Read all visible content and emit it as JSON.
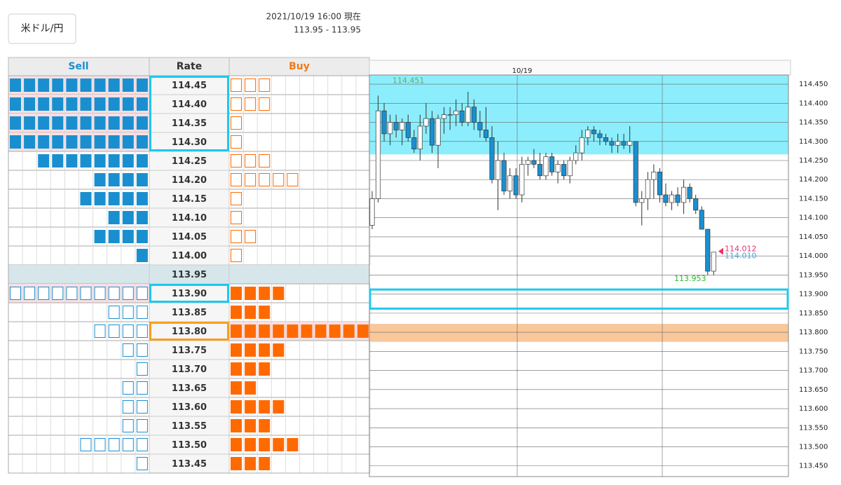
{
  "header": {
    "button": "米ドル/円",
    "timestamp": "2021/10/19 16:00 現在",
    "range": "113.95 - 113.95"
  },
  "order_book": {
    "columns": [
      "Sell",
      "Rate",
      "Buy"
    ],
    "rows": [
      {
        "rate": "114.45",
        "sell": 10,
        "buy": 3
      },
      {
        "rate": "114.40",
        "sell": 10,
        "buy": 3
      },
      {
        "rate": "114.35",
        "sell": 10,
        "buy": 1
      },
      {
        "rate": "114.30",
        "sell": 10,
        "buy": 1
      },
      {
        "rate": "114.25",
        "sell": 8,
        "buy": 3
      },
      {
        "rate": "114.20",
        "sell": 4,
        "buy": 5
      },
      {
        "rate": "114.15",
        "sell": 5,
        "buy": 1
      },
      {
        "rate": "114.10",
        "sell": 3,
        "buy": 1
      },
      {
        "rate": "114.05",
        "sell": 4,
        "buy": 2
      },
      {
        "rate": "114.00",
        "sell": 1,
        "buy": 1
      },
      {
        "rate": "113.95"
      },
      {
        "rate": "113.90",
        "sell": 10,
        "buy": 4
      },
      {
        "rate": "113.85",
        "sell": 3,
        "buy": 3
      },
      {
        "rate": "113.80",
        "sell": 4,
        "buy": 10
      },
      {
        "rate": "113.75",
        "sell": 2,
        "buy": 4
      },
      {
        "rate": "113.70",
        "sell": 1,
        "buy": 3
      },
      {
        "rate": "113.65",
        "sell": 2,
        "buy": 2
      },
      {
        "rate": "113.60",
        "sell": 2,
        "buy": 4
      },
      {
        "rate": "113.55",
        "sell": 2,
        "buy": 3
      },
      {
        "rate": "113.50",
        "sell": 5,
        "buy": 5
      },
      {
        "rate": "113.45",
        "sell": 1,
        "buy": 3
      }
    ]
  },
  "chart_data": {
    "type": "candlestick",
    "date_label": "10/19",
    "up_color": "#ffffff",
    "down_color": "#1a8fd0",
    "open": [
      114.08,
      114.15,
      114.38,
      114.32,
      114.35,
      114.33,
      114.35,
      114.31,
      114.28,
      114.34,
      114.36,
      114.29,
      114.36,
      114.37,
      114.37,
      114.38,
      114.35,
      114.39,
      114.35,
      114.33,
      114.31,
      114.2,
      114.25,
      114.17,
      114.21,
      114.16,
      114.24,
      114.25,
      114.24,
      114.21,
      114.26,
      114.22,
      114.24,
      114.21,
      114.25,
      114.27,
      114.31,
      114.33,
      114.32,
      114.31,
      114.3,
      114.29,
      114.3,
      114.29,
      114.3,
      114.14,
      114.15,
      114.2,
      114.22,
      114.16,
      114.14,
      114.16,
      114.14,
      114.18,
      114.15,
      114.12,
      114.07,
      113.96
    ],
    "high": [
      114.17,
      114.42,
      114.4,
      114.37,
      114.37,
      114.36,
      114.37,
      114.33,
      114.37,
      114.4,
      114.38,
      114.37,
      114.39,
      114.39,
      114.41,
      114.4,
      114.43,
      114.41,
      114.38,
      114.39,
      114.34,
      114.3,
      114.27,
      114.23,
      114.23,
      114.26,
      114.26,
      114.28,
      114.27,
      114.27,
      114.27,
      114.25,
      114.25,
      114.26,
      114.29,
      114.33,
      114.34,
      114.34,
      114.33,
      114.32,
      114.31,
      114.32,
      114.32,
      114.34,
      114.3,
      114.17,
      114.22,
      114.24,
      114.23,
      114.19,
      114.17,
      114.18,
      114.2,
      114.19,
      114.16,
      114.13,
      114.07,
      114.01
    ],
    "low": [
      114.07,
      114.14,
      114.3,
      114.29,
      114.31,
      114.29,
      114.3,
      114.27,
      114.25,
      114.32,
      114.27,
      114.23,
      114.32,
      114.33,
      114.34,
      114.34,
      114.34,
      114.33,
      114.31,
      114.3,
      114.19,
      114.12,
      114.16,
      114.15,
      114.15,
      114.14,
      114.21,
      114.23,
      114.2,
      114.2,
      114.21,
      114.19,
      114.2,
      114.19,
      114.24,
      114.25,
      114.29,
      114.3,
      114.29,
      114.29,
      114.27,
      114.27,
      114.28,
      114.27,
      114.13,
      114.08,
      114.12,
      114.15,
      114.14,
      114.13,
      114.12,
      114.13,
      114.11,
      114.14,
      114.11,
      114.07,
      113.95,
      113.95
    ],
    "close": [
      114.15,
      114.38,
      114.32,
      114.35,
      114.33,
      114.35,
      114.31,
      114.28,
      114.34,
      114.36,
      114.29,
      114.36,
      114.37,
      114.37,
      114.38,
      114.35,
      114.39,
      114.35,
      114.33,
      114.31,
      114.2,
      114.25,
      114.17,
      114.21,
      114.16,
      114.24,
      114.25,
      114.24,
      114.21,
      114.26,
      114.22,
      114.24,
      114.21,
      114.25,
      114.27,
      114.31,
      114.33,
      114.32,
      114.31,
      114.3,
      114.29,
      114.3,
      114.29,
      114.3,
      114.14,
      114.15,
      114.2,
      114.22,
      114.16,
      114.14,
      114.16,
      114.14,
      114.18,
      114.15,
      114.12,
      114.07,
      113.96,
      114.01
    ],
    "ylim": [
      113.422,
      114.474
    ],
    "yticks": [
      {
        "value": 114.45,
        "label": "114.450"
      },
      {
        "value": 114.4,
        "label": "114.400"
      },
      {
        "value": 114.35,
        "label": "114.350"
      },
      {
        "value": 114.3,
        "label": "114.300"
      },
      {
        "value": 114.25,
        "label": "114.250"
      },
      {
        "value": 114.2,
        "label": "114.200"
      },
      {
        "value": 114.15,
        "label": "114.150"
      },
      {
        "value": 114.1,
        "label": "114.100"
      },
      {
        "value": 114.05,
        "label": "114.050"
      },
      {
        "value": 114,
        "label": "114.000"
      },
      {
        "value": 113.95,
        "label": "113.950"
      },
      {
        "value": 113.9,
        "label": "113.900"
      },
      {
        "value": 113.85,
        "label": "113.850"
      },
      {
        "value": 113.8,
        "label": "113.800"
      },
      {
        "value": 113.75,
        "label": "113.750"
      },
      {
        "value": 113.7,
        "label": "113.700"
      },
      {
        "value": 113.65,
        "label": "113.650"
      },
      {
        "value": 113.6,
        "label": "113.600"
      },
      {
        "value": 113.55,
        "label": "113.550"
      },
      {
        "value": 113.5,
        "label": "113.500"
      },
      {
        "value": 113.45,
        "label": "113.450"
      }
    ],
    "zones": [
      {
        "from": 114.266,
        "to": 114.474,
        "color": "#8ceefc"
      },
      {
        "from": 113.775,
        "to": 113.822,
        "color": "#f9c79a"
      }
    ],
    "box": {
      "from": 113.862,
      "to": 113.912,
      "color": "#1ec8ee"
    },
    "annotations": [
      {
        "value": 114.451,
        "label": "114.451",
        "color": "#6aa86a"
      },
      {
        "value": 113.953,
        "label": "113.953",
        "color": "#2eb82e"
      },
      {
        "value": 114.012,
        "label": "114.012",
        "color": "#e8336d"
      },
      {
        "value": 114.01,
        "label": "114.010",
        "color": "#4aa8e0"
      }
    ]
  }
}
